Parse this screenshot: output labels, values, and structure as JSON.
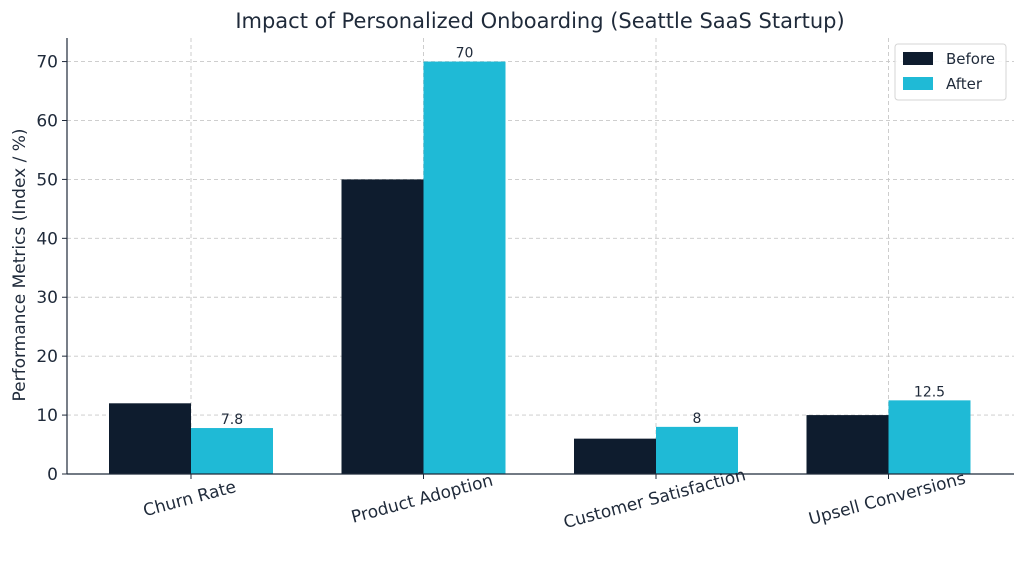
{
  "chart_data": {
    "type": "bar",
    "title": "Impact of Personalized Onboarding (Seattle SaaS Startup)",
    "xlabel": "",
    "ylabel": "Performance Metrics (Index / %)",
    "categories": [
      "Churn Rate",
      "Product Adoption",
      "Customer Satisfaction",
      "Upsell Conversions"
    ],
    "series": [
      {
        "name": "Before",
        "color": "#0e1c2e",
        "values": [
          12,
          50,
          6,
          10
        ],
        "show_labels": false
      },
      {
        "name": "After",
        "color": "#1fbad6",
        "values": [
          7.8,
          70,
          8,
          12.5
        ],
        "show_labels": true
      }
    ],
    "data_labels": [
      "7.8",
      "70",
      "8",
      "12.5"
    ],
    "ylim": [
      0,
      74
    ],
    "yticks": [
      0,
      10,
      20,
      30,
      40,
      50,
      60,
      70
    ],
    "ytick_labels": [
      "0",
      "10",
      "20",
      "30",
      "40",
      "50",
      "60",
      "70"
    ],
    "grid": true,
    "legend_position": "top-right"
  }
}
